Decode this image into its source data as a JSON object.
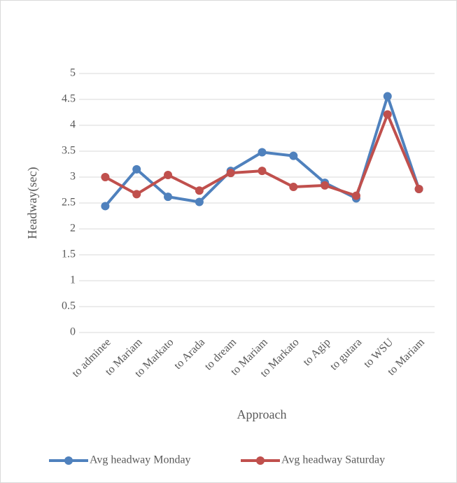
{
  "chart_data": {
    "type": "line",
    "x_label": "Approach",
    "y_label": "Headway(sec)",
    "categories": [
      "to adminee",
      "to Mariam",
      "to Markato",
      "to Arada",
      "to dream",
      "to Mariam",
      "to Markato",
      "to Agip",
      "to gutara",
      "to WSU",
      "to Mariam"
    ],
    "series": [
      {
        "name": "Avg headway Monday",
        "color": "#4f81bd",
        "values": [
          2.44,
          3.15,
          2.62,
          2.52,
          3.12,
          3.48,
          3.41,
          2.89,
          2.59,
          4.56,
          2.77
        ]
      },
      {
        "name": "Avg headway Saturday",
        "color": "#c0504d",
        "values": [
          3.0,
          2.67,
          3.04,
          2.74,
          3.08,
          3.12,
          2.81,
          2.84,
          2.64,
          4.21,
          2.77
        ]
      }
    ],
    "ylim": [
      0,
      5
    ],
    "yticks": [
      0,
      0.5,
      1,
      1.5,
      2,
      2.5,
      3,
      3.5,
      4,
      4.5,
      5
    ],
    "grid": true,
    "legend": "bottom"
  }
}
